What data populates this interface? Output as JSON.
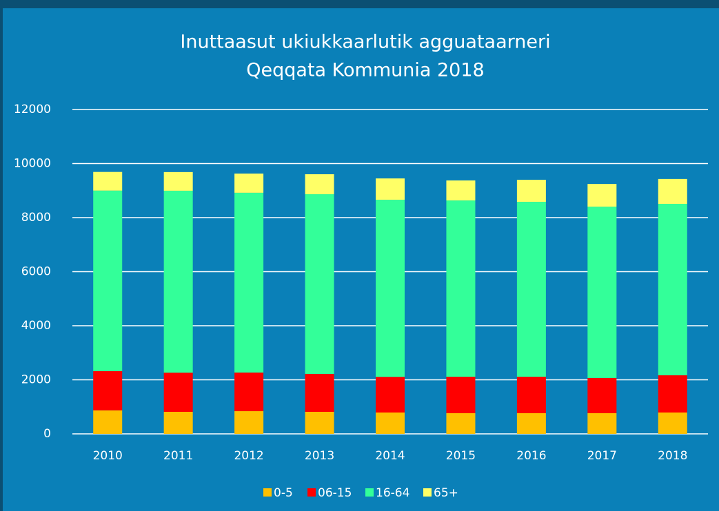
{
  "chart_data": {
    "type": "stacked_bar",
    "title": "Inuttaasut ukiukkaarlutik agguataarneri",
    "subtitle": "Qeqqata Kommunia 2018",
    "categories": [
      "2010",
      "2011",
      "2012",
      "2013",
      "2014",
      "2015",
      "2016",
      "2017",
      "2018"
    ],
    "series": [
      {
        "name": "0-5",
        "color": "#ffc000",
        "values": [
          870,
          815,
          840,
          815,
          790,
          765,
          765,
          765,
          790
        ]
      },
      {
        "name": "06-15",
        "color": "#ff0000",
        "values": [
          1450,
          1450,
          1430,
          1400,
          1320,
          1350,
          1350,
          1300,
          1380
        ]
      },
      {
        "name": "16-64",
        "color": "#33ff99",
        "values": [
          6680,
          6730,
          6650,
          6650,
          6550,
          6520,
          6470,
          6340,
          6340
        ]
      },
      {
        "name": "65+",
        "color": "#ffff66",
        "values": [
          690,
          690,
          710,
          740,
          790,
          740,
          815,
          840,
          920
        ]
      }
    ],
    "ylim": [
      0,
      12000
    ],
    "yticks": [
      0,
      2000,
      4000,
      6000,
      8000,
      10000,
      12000
    ],
    "grid": true,
    "legend": "bottom"
  }
}
